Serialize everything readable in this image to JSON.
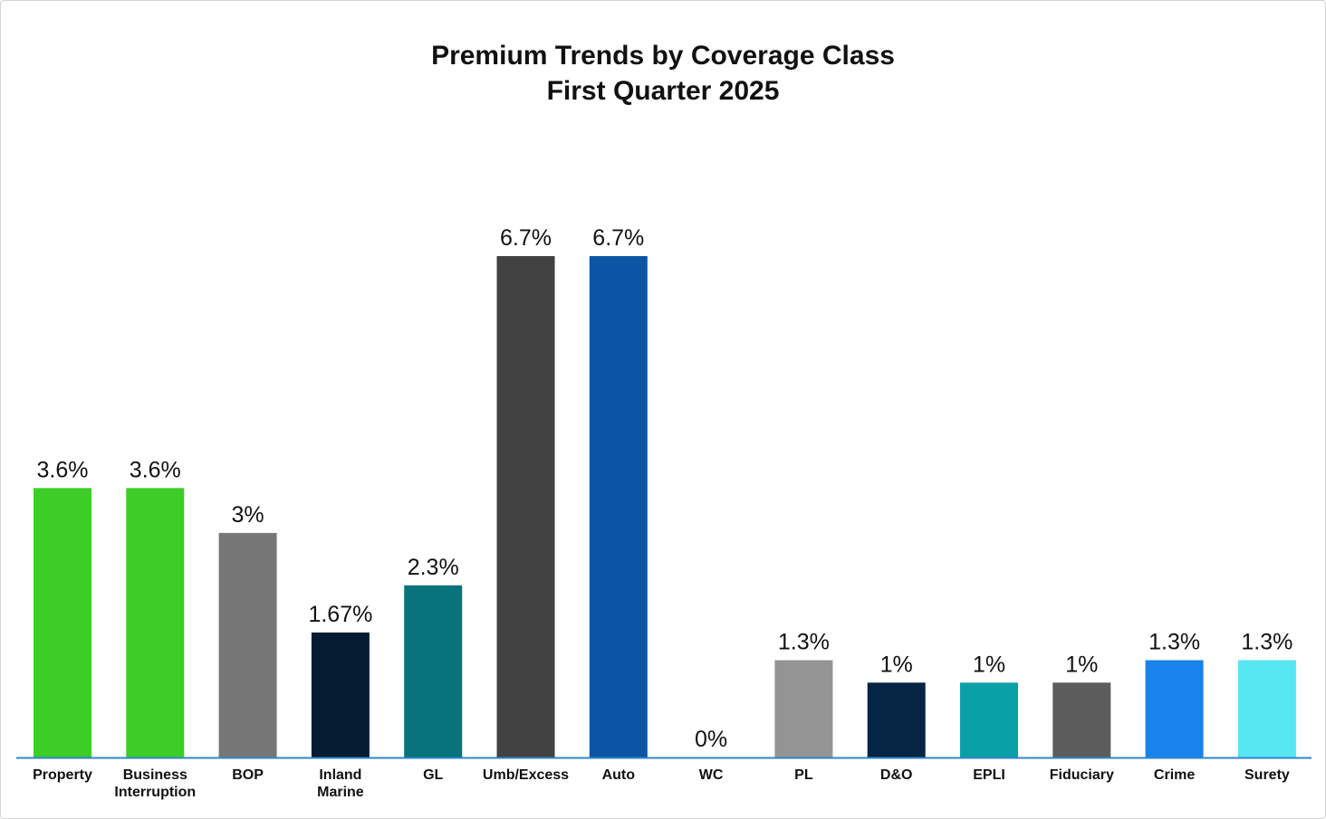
{
  "chart_data": {
    "type": "bar",
    "title": "Premium Trends by Coverage Class",
    "subtitle": "First Quarter 2025",
    "categories": [
      "Property",
      "Business Interruption",
      "BOP",
      "Inland Marine",
      "GL",
      "Umb/Excess",
      "Auto",
      "WC",
      "PL",
      "D&O",
      "EPLI",
      "Fiduciary",
      "Crime",
      "Surety"
    ],
    "category_lines": [
      [
        "Property"
      ],
      [
        "Business",
        "Interruption"
      ],
      [
        "BOP"
      ],
      [
        "Inland",
        "Marine"
      ],
      [
        "GL"
      ],
      [
        "Umb/Excess"
      ],
      [
        "Auto"
      ],
      [
        "WC"
      ],
      [
        "PL"
      ],
      [
        "D&O"
      ],
      [
        "EPLI"
      ],
      [
        "Fiduciary"
      ],
      [
        "Crime"
      ],
      [
        "Surety"
      ]
    ],
    "values": [
      3.6,
      3.6,
      3.0,
      1.67,
      2.3,
      6.7,
      6.7,
      0,
      1.3,
      1.0,
      1.0,
      1.0,
      1.3,
      1.3
    ],
    "value_labels": [
      "3.6%",
      "3.6%",
      "3%",
      "1.67%",
      "2.3%",
      "6.7%",
      "6.7%",
      "0%",
      "1.3%",
      "1%",
      "1%",
      "1%",
      "1.3%",
      "1.3%"
    ],
    "colors": [
      "#3dcd27",
      "#3dcd27",
      "#777777",
      "#051c33",
      "#08737a",
      "#424242",
      "#0b55a4",
      "#cccccc",
      "#949494",
      "#062444",
      "#0aa0a8",
      "#5c5c5c",
      "#1a82eb",
      "#55e6f2"
    ],
    "axis_color": "#2f85c8",
    "xlabel": "",
    "ylabel": "",
    "ylim": [
      0,
      6.7
    ],
    "grid": false,
    "legend": "none"
  }
}
